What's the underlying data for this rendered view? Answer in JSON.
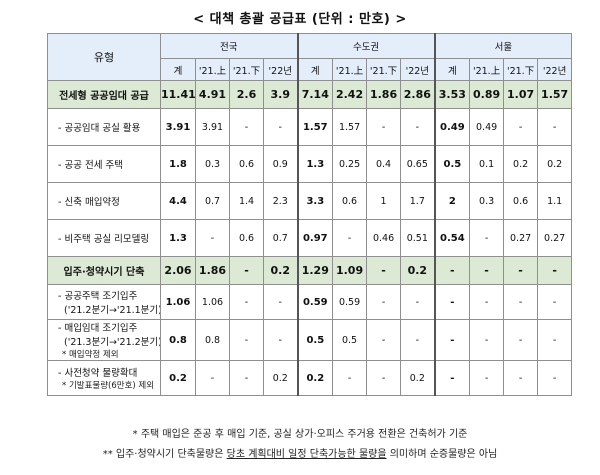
{
  "title": "< 대책 총괄 공급표 (단위 : 만호) >",
  "header": {
    "type_label": "유형",
    "regions": [
      "전국",
      "수도권",
      "서울"
    ],
    "subcols": [
      "계",
      "'21.上",
      "'21.下",
      "'22년"
    ]
  },
  "rows": [
    {
      "kind": "main",
      "label": "전세형 공공임대 공급",
      "values": [
        "11.41",
        "4.91",
        "2.6",
        "3.9",
        "7.14",
        "2.42",
        "1.86",
        "2.86",
        "3.53",
        "0.89",
        "1.07",
        "1.57"
      ]
    },
    {
      "kind": "sub",
      "label": "- 공공임대 공실 활용",
      "values": [
        "3.91",
        "3.91",
        "-",
        "-",
        "1.57",
        "1.57",
        "-",
        "-",
        "0.49",
        "0.49",
        "-",
        "-"
      ]
    },
    {
      "kind": "sub",
      "label": "- 공공 전세 주택",
      "values": [
        "1.8",
        "0.3",
        "0.6",
        "0.9",
        "1.3",
        "0.25",
        "0.4",
        "0.65",
        "0.5",
        "0.1",
        "0.2",
        "0.2"
      ]
    },
    {
      "kind": "sub",
      "label": "- 신축 매입약정",
      "values": [
        "4.4",
        "0.7",
        "1.4",
        "2.3",
        "3.3",
        "0.6",
        "1",
        "1.7",
        "2",
        "0.3",
        "0.6",
        "1.1"
      ]
    },
    {
      "kind": "sub",
      "label": "- 비주택 공실 리모델링",
      "values": [
        "1.3",
        "-",
        "0.6",
        "0.7",
        "0.97",
        "-",
        "0.46",
        "0.51",
        "0.54",
        "-",
        "0.27",
        "0.27"
      ]
    },
    {
      "kind": "main",
      "label": "입주·청약시기 단축",
      "values": [
        "2.06",
        "1.86",
        "-",
        "0.2",
        "1.29",
        "1.09",
        "-",
        "0.2",
        "-",
        "-",
        "-",
        "-"
      ]
    },
    {
      "kind": "sub2",
      "label": "- 공공주택 조기입주",
      "label2": "('21.2분기→'21.1분기)",
      "values": [
        "1.06",
        "1.06",
        "-",
        "-",
        "0.59",
        "0.59",
        "-",
        "-",
        "-",
        "-",
        "-",
        "-"
      ]
    },
    {
      "kind": "sub3",
      "label": "- 매입임대 조기입주",
      "label2": "('21.3분기→'21.2분기)",
      "label3": "* 매입약정 제외",
      "values": [
        "0.8",
        "0.8",
        "-",
        "-",
        "0.5",
        "0.5",
        "-",
        "-",
        "-",
        "-",
        "-",
        "-"
      ]
    },
    {
      "kind": "sub2",
      "label": "- 사전청약 물량확대",
      "label2": "* 기발표물량(6만호) 제외",
      "values": [
        "0.2",
        "-",
        "-",
        "0.2",
        "0.2",
        "-",
        "-",
        "0.2",
        "-",
        "-",
        "-",
        "-"
      ]
    }
  ],
  "footnotes": {
    "line1": "* 주택 매입은 준공 후 매입 기준, 공실 상가·오피스 주거용 전환은 건축허가 기준",
    "line2_prefix": "** 입주·청약시기 단축물량은 ",
    "line2_underlined": "당초 계획대비 일정 단축가능한 물량을",
    "line2_suffix": " 의미하며 순증물량은 아님"
  }
}
